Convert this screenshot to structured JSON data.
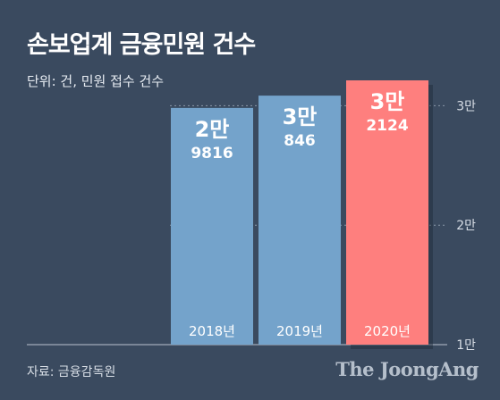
{
  "header": {
    "title": "손보업계 금융민원 건수",
    "unit": "단위: 건, 민원 접수 건수"
  },
  "footer": {
    "source": "자료: 금융감독원",
    "brand": "The JoongAng"
  },
  "colors": {
    "background": "#3a4a5f",
    "bar_default": "#74a3cb",
    "bar_highlight": "#fe7f7e"
  },
  "chart_data": {
    "type": "bar",
    "title": "손보업계 금융민원 건수",
    "xlabel": "",
    "ylabel": "",
    "categories": [
      "2018년",
      "2019년",
      "2020년"
    ],
    "values": [
      29816,
      30846,
      32124
    ],
    "value_labels": [
      {
        "big": "2만",
        "small": "9816"
      },
      {
        "big": "3만",
        "small": "846"
      },
      {
        "big": "3만",
        "small": "2124"
      }
    ],
    "highlight_index": 2,
    "yticks": [
      {
        "value": 10000,
        "label": "1만"
      },
      {
        "value": 20000,
        "label": "2만"
      },
      {
        "value": 30000,
        "label": "3만"
      }
    ],
    "ylim": [
      10000,
      32124
    ],
    "grid": true
  }
}
